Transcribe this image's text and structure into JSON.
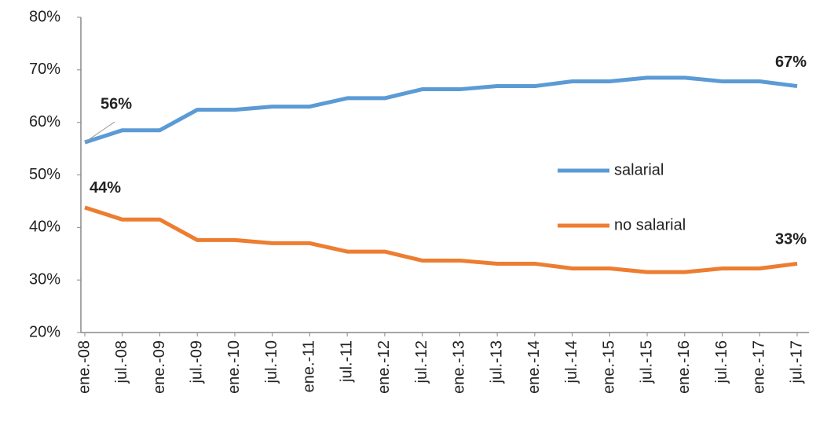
{
  "chart_data": {
    "type": "line",
    "categories": [
      "ene.-08",
      "jul.-08",
      "ene.-09",
      "jul.-09",
      "ene.-10",
      "jul.-10",
      "ene.-11",
      "jul.-11",
      "ene.-12",
      "jul.-12",
      "ene.-13",
      "jul.-13",
      "ene.-14",
      "jul.-14",
      "ene.-15",
      "jul.-15",
      "ene.-16",
      "jul.-16",
      "ene.-17",
      "jul.-17"
    ],
    "series": [
      {
        "name": "salarial",
        "color": "#5b9bd5",
        "values": [
          56.2,
          58.5,
          58.5,
          62.4,
          62.4,
          63.0,
          63.0,
          64.6,
          64.6,
          66.3,
          66.3,
          66.9,
          66.9,
          67.8,
          67.8,
          68.5,
          68.5,
          67.8,
          67.8,
          66.9
        ],
        "value_labels": [
          "56%",
          null,
          null,
          null,
          null,
          null,
          null,
          null,
          null,
          null,
          null,
          null,
          null,
          null,
          null,
          null,
          null,
          null,
          null,
          "67%"
        ]
      },
      {
        "name": "no salarial",
        "color": "#ed7d31",
        "values": [
          43.8,
          41.5,
          41.5,
          37.6,
          37.6,
          37.0,
          37.0,
          35.4,
          35.4,
          33.7,
          33.7,
          33.1,
          33.1,
          32.2,
          32.2,
          31.5,
          31.5,
          32.2,
          32.2,
          33.1
        ],
        "value_labels": [
          "44%",
          null,
          null,
          null,
          null,
          null,
          null,
          null,
          null,
          null,
          null,
          null,
          null,
          null,
          null,
          null,
          null,
          null,
          null,
          "33%"
        ]
      }
    ],
    "ylim": [
      20,
      80
    ],
    "yticks": [
      {
        "value": 20,
        "label": "20%"
      },
      {
        "value": 30,
        "label": "30%"
      },
      {
        "value": 40,
        "label": "40%"
      },
      {
        "value": 50,
        "label": "50%"
      },
      {
        "value": 60,
        "label": "60%"
      },
      {
        "value": 70,
        "label": "70%"
      },
      {
        "value": 80,
        "label": "80%"
      }
    ],
    "legend": "right",
    "grid": false
  }
}
